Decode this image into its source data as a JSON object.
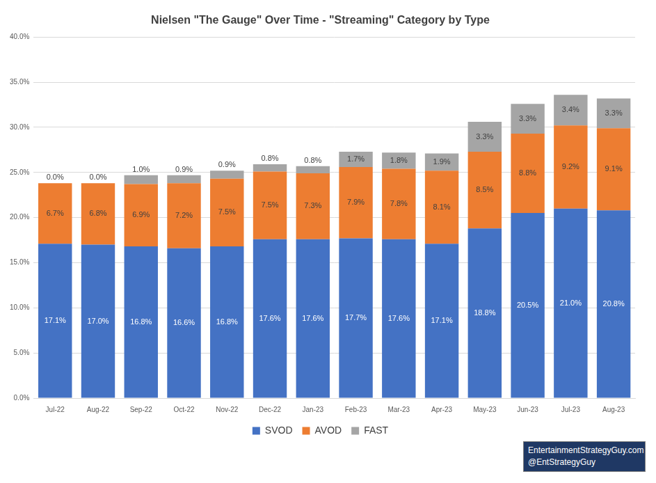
{
  "chart_data": {
    "type": "bar",
    "title": "Nielsen \"The Gauge\" Over Time - \"Streaming\" Category by Type",
    "categories": [
      "Jul-22",
      "Aug-22",
      "Sep-22",
      "Oct-22",
      "Nov-22",
      "Dec-22",
      "Jan-23",
      "Feb-23",
      "Mar-23",
      "Apr-23",
      "May-23",
      "Jun-23",
      "Jul-23",
      "Aug-23"
    ],
    "series": [
      {
        "name": "SVOD",
        "color": "#4472c4",
        "values": [
          17.1,
          17.0,
          16.8,
          16.6,
          16.8,
          17.6,
          17.6,
          17.7,
          17.6,
          17.1,
          18.8,
          20.5,
          21.0,
          20.8
        ],
        "value_labels": [
          "17.1%",
          "17.0%",
          "16.8%",
          "16.6%",
          "16.8%",
          "17.6%",
          "17.6%",
          "17.7%",
          "17.6%",
          "17.1%",
          "18.8%",
          "20.5%",
          "21.0%",
          "20.8%"
        ]
      },
      {
        "name": "AVOD",
        "color": "#ed7d31",
        "values": [
          6.7,
          6.8,
          6.9,
          7.2,
          7.5,
          7.5,
          7.3,
          7.9,
          7.8,
          8.1,
          8.5,
          8.8,
          9.2,
          9.1
        ],
        "value_labels": [
          "6.7%",
          "6.8%",
          "6.9%",
          "7.2%",
          "7.5%",
          "7.5%",
          "7.3%",
          "7.9%",
          "7.8%",
          "8.1%",
          "8.5%",
          "8.8%",
          "9.2%",
          "9.1%"
        ]
      },
      {
        "name": "FAST",
        "color": "#a5a5a5",
        "values": [
          0.0,
          0.0,
          1.0,
          0.9,
          0.9,
          0.8,
          0.8,
          1.7,
          1.8,
          1.9,
          3.3,
          3.3,
          3.4,
          3.3
        ],
        "value_labels": [
          "0.0%",
          "0.0%",
          "1.0%",
          "0.9%",
          "0.9%",
          "0.8%",
          "0.8%",
          "1.7%",
          "1.8%",
          "1.9%",
          "3.3%",
          "3.3%",
          "3.4%",
          "3.3%"
        ]
      }
    ],
    "ylim": [
      0,
      40
    ],
    "yticks": [
      {
        "value": 0,
        "label": "0.0%"
      },
      {
        "value": 5,
        "label": "5.0%"
      },
      {
        "value": 10,
        "label": "10.0%"
      },
      {
        "value": 15,
        "label": "15.0%"
      },
      {
        "value": 20,
        "label": "20.0%"
      },
      {
        "value": 25,
        "label": "25.0%"
      },
      {
        "value": 30,
        "label": "30.0%"
      },
      {
        "value": 35,
        "label": "35.0%"
      },
      {
        "value": 40,
        "label": "40.0%"
      }
    ],
    "stacked": true,
    "data_labels": true,
    "grid": true,
    "legend": "bottom",
    "annotations": [
      "EntertainmentStrategyGuy.com",
      "@EntStrategyGuy"
    ]
  }
}
